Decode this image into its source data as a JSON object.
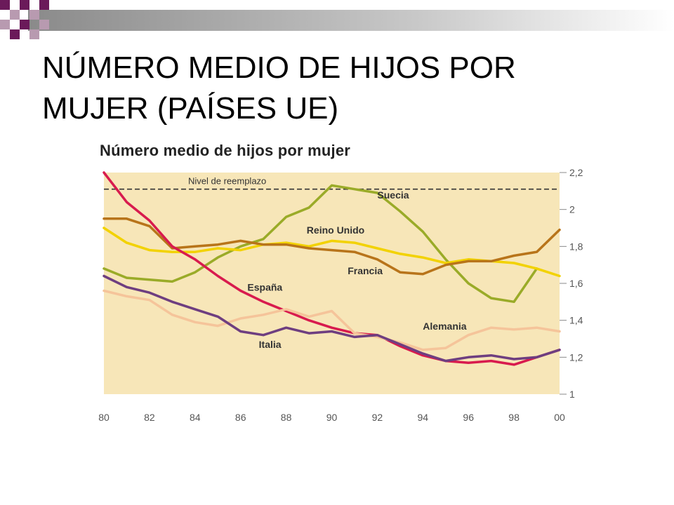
{
  "slide": {
    "title_line1": "NÚMERO MEDIO DE HIJOS POR",
    "title_line2": "MUJER (PAÍSES UE)"
  },
  "colors": {
    "decor_purple": "#6b1a5a",
    "decor_bar": "#9a9a9a",
    "plot_background": "#f7e6b8"
  },
  "chart_data": {
    "type": "line",
    "title": "Número medio de hijos por mujer",
    "xlabel": "",
    "ylabel": "",
    "x_tick_labels": [
      "80",
      "82",
      "84",
      "86",
      "88",
      "90",
      "92",
      "94",
      "96",
      "98",
      "00"
    ],
    "y_tick_labels": [
      "1",
      "1,2",
      "1,4",
      "1,6",
      "1,8",
      "2",
      "2,2"
    ],
    "xlim": [
      1980,
      2000
    ],
    "ylim": [
      1.0,
      2.2
    ],
    "y_ticks": [
      1.0,
      1.2,
      1.4,
      1.6,
      1.8,
      2.0,
      2.2
    ],
    "grid": false,
    "y_axis_side": "right",
    "reference_line": {
      "label": "Nivel de reemplazo",
      "value": 2.11
    },
    "series": [
      {
        "name": "Suecia",
        "color": "#9aab28",
        "x": [
          1980,
          1981,
          1982,
          1983,
          1984,
          1985,
          1986,
          1987,
          1988,
          1989,
          1990,
          1991,
          1992,
          1993,
          1994,
          1995,
          1996,
          1997,
          1998,
          1999
        ],
        "y": [
          1.68,
          1.63,
          1.62,
          1.61,
          1.66,
          1.74,
          1.8,
          1.84,
          1.96,
          2.01,
          2.13,
          2.11,
          2.09,
          1.99,
          1.88,
          1.73,
          1.6,
          1.52,
          1.5,
          1.68
        ]
      },
      {
        "name": "Reino Unido",
        "color": "#f2d200",
        "x": [
          1980,
          1981,
          1982,
          1983,
          1984,
          1985,
          1986,
          1987,
          1988,
          1989,
          1990,
          1991,
          1992,
          1993,
          1994,
          1995,
          1996,
          1997,
          1998,
          1999,
          2000
        ],
        "y": [
          1.9,
          1.82,
          1.78,
          1.77,
          1.77,
          1.79,
          1.78,
          1.81,
          1.82,
          1.8,
          1.83,
          1.82,
          1.79,
          1.76,
          1.74,
          1.71,
          1.73,
          1.72,
          1.71,
          1.68,
          1.64
        ]
      },
      {
        "name": "Francia",
        "color": "#b8741a",
        "x": [
          1980,
          1981,
          1982,
          1983,
          1984,
          1985,
          1986,
          1987,
          1988,
          1989,
          1990,
          1991,
          1992,
          1993,
          1994,
          1995,
          1996,
          1997,
          1998,
          1999,
          2000
        ],
        "y": [
          1.95,
          1.95,
          1.91,
          1.79,
          1.8,
          1.81,
          1.83,
          1.81,
          1.81,
          1.79,
          1.78,
          1.77,
          1.73,
          1.66,
          1.65,
          1.7,
          1.72,
          1.72,
          1.75,
          1.77,
          1.89
        ]
      },
      {
        "name": "España",
        "color": "#d81b4e",
        "x": [
          1980,
          1981,
          1982,
          1983,
          1984,
          1985,
          1986,
          1987,
          1988,
          1989,
          1990,
          1991,
          1992,
          1993,
          1994,
          1995,
          1996,
          1997,
          1998,
          1999,
          2000
        ],
        "y": [
          2.2,
          2.04,
          1.94,
          1.8,
          1.73,
          1.64,
          1.56,
          1.5,
          1.45,
          1.4,
          1.36,
          1.33,
          1.32,
          1.26,
          1.21,
          1.18,
          1.17,
          1.18,
          1.16,
          1.2,
          1.24
        ]
      },
      {
        "name": "Alemania",
        "color": "#f5c49a",
        "x": [
          1980,
          1981,
          1982,
          1983,
          1984,
          1985,
          1986,
          1987,
          1988,
          1989,
          1990,
          1991,
          1992,
          1993,
          1994,
          1995,
          1996,
          1997,
          1998,
          1999,
          2000
        ],
        "y": [
          1.56,
          1.53,
          1.51,
          1.43,
          1.39,
          1.37,
          1.41,
          1.43,
          1.46,
          1.42,
          1.45,
          1.33,
          1.31,
          1.28,
          1.24,
          1.25,
          1.32,
          1.36,
          1.35,
          1.36,
          1.34
        ]
      },
      {
        "name": "Italia",
        "color": "#6e3e80",
        "x": [
          1980,
          1981,
          1982,
          1983,
          1984,
          1985,
          1986,
          1987,
          1988,
          1989,
          1990,
          1991,
          1992,
          1993,
          1994,
          1995,
          1996,
          1997,
          1998,
          1999,
          2000
        ],
        "y": [
          1.64,
          1.58,
          1.55,
          1.5,
          1.46,
          1.42,
          1.34,
          1.32,
          1.36,
          1.33,
          1.34,
          1.31,
          1.32,
          1.27,
          1.22,
          1.18,
          1.2,
          1.21,
          1.19,
          1.2,
          1.24
        ]
      }
    ]
  }
}
